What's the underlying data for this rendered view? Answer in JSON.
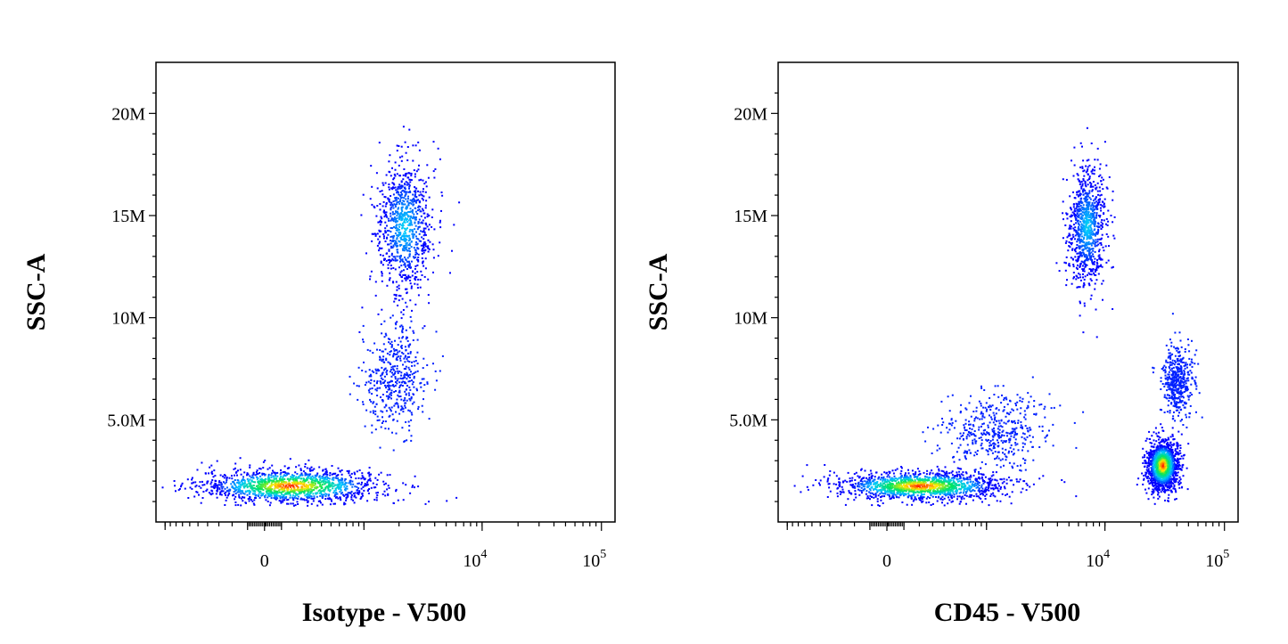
{
  "chart_data": [
    {
      "type": "scatter",
      "title": "",
      "xlabel": "Isotype - V500",
      "ylabel": "SSC-A",
      "x_scale": "biexponential",
      "y_scale": "linear",
      "ylim": [
        0,
        22500000
      ],
      "y_ticks": [
        {
          "value": 5000000,
          "label": "5.0M"
        },
        {
          "value": 10000000,
          "label": "10M"
        },
        {
          "value": 15000000,
          "label": "15M"
        },
        {
          "value": 20000000,
          "label": "20M"
        }
      ],
      "x_ticks": [
        {
          "value": 0,
          "base": "0",
          "exp": ""
        },
        {
          "value": 10000,
          "base": "10",
          "exp": "4"
        },
        {
          "value": 100000,
          "base": "10",
          "exp": "5"
        }
      ],
      "color_scale": "density (blue-cyan-green-yellow-red)",
      "populations": [
        {
          "x_center": 150,
          "y_center": 1800000,
          "x_spread": 900,
          "y_spread": 700000,
          "density": "high"
        },
        {
          "x_center": 2200,
          "y_center": 14500000,
          "x_spread": 1300,
          "y_spread": 2800000,
          "density": "medium"
        },
        {
          "x_center": 1800,
          "y_center": 7000000,
          "x_spread": 1300,
          "y_spread": 2200000,
          "density": "low"
        }
      ]
    },
    {
      "type": "scatter",
      "title": "",
      "xlabel": "CD45 - V500",
      "ylabel": "SSC-A",
      "x_scale": "biexponential",
      "y_scale": "linear",
      "ylim": [
        0,
        22500000
      ],
      "y_ticks": [
        {
          "value": 5000000,
          "label": "5.0M"
        },
        {
          "value": 10000000,
          "label": "10M"
        },
        {
          "value": 15000000,
          "label": "15M"
        },
        {
          "value": 20000000,
          "label": "20M"
        }
      ],
      "x_ticks": [
        {
          "value": 0,
          "base": "0",
          "exp": ""
        },
        {
          "value": 10000,
          "base": "10",
          "exp": "4"
        },
        {
          "value": 100000,
          "base": "10",
          "exp": "5"
        }
      ],
      "color_scale": "density (blue-cyan-green-yellow-red)",
      "populations": [
        {
          "x_center": 200,
          "y_center": 1800000,
          "x_spread": 900,
          "y_spread": 600000,
          "density": "high"
        },
        {
          "x_center": 7000,
          "y_center": 14500000,
          "x_spread": 2500,
          "y_spread": 2500000,
          "density": "medium"
        },
        {
          "x_center": 30000,
          "y_center": 2800000,
          "x_spread": 8000,
          "y_spread": 1000000,
          "density": "high"
        },
        {
          "x_center": 40000,
          "y_center": 7000000,
          "x_spread": 10000,
          "y_spread": 1500000,
          "density": "low"
        },
        {
          "x_center": 1200,
          "y_center": 4500000,
          "x_spread": 1500,
          "y_spread": 1500000,
          "density": "low"
        }
      ]
    }
  ]
}
